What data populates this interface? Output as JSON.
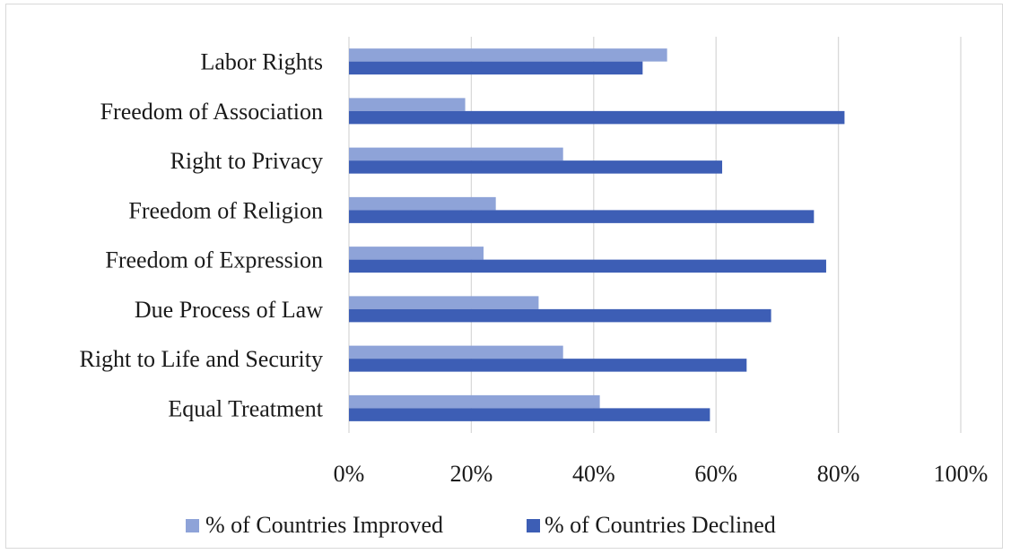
{
  "chart_data": {
    "type": "bar",
    "orientation": "horizontal",
    "categories": [
      "Labor Rights",
      "Freedom of Association",
      "Right to Privacy",
      "Freedom of Religion",
      "Freedom of Expression",
      "Due Process of Law",
      "Right to Life and Security",
      "Equal Treatment"
    ],
    "series": [
      {
        "name": "% of Countries Improved",
        "color": "#8ea3d8",
        "values": [
          52,
          19,
          35,
          24,
          22,
          31,
          35,
          41
        ]
      },
      {
        "name": "% of Countries Declined",
        "color": "#3d5eb5",
        "values": [
          48,
          81,
          61,
          76,
          78,
          69,
          65,
          59
        ]
      }
    ],
    "xlim": [
      0,
      100
    ],
    "x_ticks": [
      0,
      20,
      40,
      60,
      80,
      100
    ],
    "tick_labels": [
      "0%",
      "20%",
      "40%",
      "60%",
      "80%",
      "100%"
    ],
    "grid": true,
    "legend_position": "bottom"
  }
}
